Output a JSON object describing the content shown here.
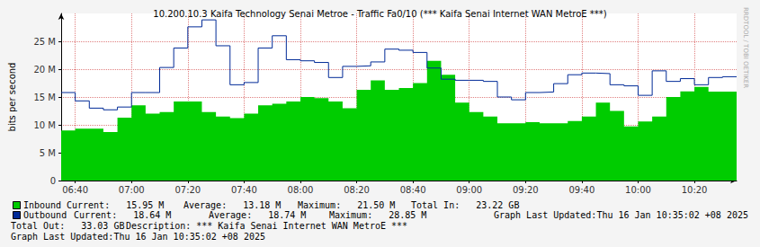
{
  "chart_data": {
    "type": "line",
    "title": "10.200.10.3 Kaifa Technology Senai Metroe - Traffic Fa0/10 (*** Kaifa Senai Internet WAN MetroE ***)",
    "y_label": "bits per second",
    "side_text": "RRDTOOL / TOBI OETIKER",
    "categories": [
      null,
      "06:40",
      null,
      null,
      null,
      "07:00",
      null,
      null,
      null,
      "07:20",
      null,
      null,
      null,
      "07:40",
      null,
      null,
      null,
      "08:00",
      null,
      null,
      null,
      "08:20",
      null,
      null,
      null,
      "08:40",
      null,
      null,
      null,
      "09:00",
      null,
      null,
      null,
      "09:20",
      null,
      null,
      null,
      "09:40",
      null,
      null,
      null,
      "10:00",
      null,
      null,
      null,
      "10:20",
      null,
      null,
      null
    ],
    "ylim": [
      0,
      30
    ],
    "yticks": [
      0,
      {
        "value": 5,
        "label": "5 M"
      },
      {
        "value": 10,
        "label": "10 M"
      },
      {
        "value": 15,
        "label": "15 M"
      },
      {
        "value": 20,
        "label": "20 M"
      },
      {
        "value": 25,
        "label": "25 M"
      }
    ],
    "grid": true,
    "series": [
      {
        "name": "Inbound",
        "type": "area",
        "color": "#00cc00",
        "line_style": "step",
        "values": [
          9,
          9,
          9.3,
          9.3,
          8.7,
          11.3,
          13.5,
          12,
          12.3,
          14.2,
          14.2,
          12.3,
          11.5,
          11.2,
          12,
          13.5,
          13.8,
          14.2,
          15,
          14.8,
          14.2,
          13,
          16.3,
          18,
          16.3,
          16.6,
          17.5,
          21.5,
          19,
          14,
          12.3,
          11.5,
          10.3,
          10.3,
          10.5,
          10.3,
          10.3,
          10.7,
          11.5,
          14,
          12.5,
          9.7,
          10.6,
          11.5,
          15,
          16,
          16.8,
          15.95,
          15.95
        ],
        "stats": [
          {
            "label": "Current:",
            "text": "15.95 M"
          },
          {
            "label": "Average:",
            "text": "13.18 M"
          },
          {
            "label": "Maximum:",
            "text": "21.50 M"
          },
          {
            "label": "Total In:",
            "text": "23.22 GB"
          }
        ]
      },
      {
        "name": "Outbound",
        "type": "line",
        "color": "#002a97",
        "line_style": "step",
        "values": [
          15.8,
          15.8,
          14.3,
          13,
          12.7,
          13.2,
          15.8,
          15.8,
          20.3,
          23.8,
          27.6,
          28.85,
          24.2,
          17.2,
          17.6,
          23.8,
          26,
          21.7,
          21.5,
          21.2,
          18.5,
          20.5,
          20.6,
          21.3,
          23.6,
          23.4,
          23,
          20.2,
          18.2,
          18,
          18,
          17.8,
          15,
          14.5,
          15.8,
          15.9,
          17.4,
          19,
          19.3,
          19.2,
          17.2,
          17,
          15.3,
          19.7,
          17.8,
          18.3,
          17.2,
          18.5,
          18.64
        ],
        "stats": [
          {
            "label": "Current:",
            "text": "18.64 M"
          },
          {
            "label": "Average:",
            "text": "18.74 M"
          },
          {
            "label": "Maximum:",
            "text": "28.85 M"
          },
          {
            "label": "Graph Last Updated:Thu 16 Jan 10:35:02 +08 2025"
          }
        ]
      }
    ],
    "footer_lines": [
      [
        {
          "label": "Total Out:",
          "text": "33.03 GB"
        },
        {
          "label": "Description: *** Kaifa Senai Internet WAN MetroE ***"
        }
      ],
      [
        {
          "label": "Graph Last Updated:Thu 16 Jan 10:35:02 +08 2025"
        }
      ]
    ]
  }
}
